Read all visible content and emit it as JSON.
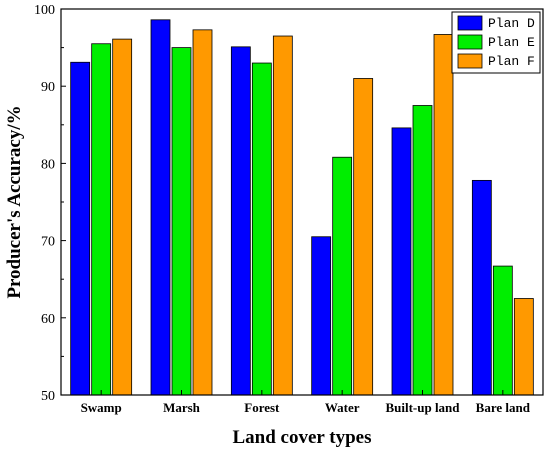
{
  "chart_data": {
    "type": "bar",
    "title": "",
    "xlabel": "Land cover types",
    "ylabel": "Producer's Accuracy/%",
    "ylim": [
      50,
      100
    ],
    "yticks": [
      50,
      60,
      70,
      80,
      90,
      100
    ],
    "categories": [
      "Swamp",
      "Marsh",
      "Forest",
      "Water",
      "Built-up land",
      "Bare land"
    ],
    "series": [
      {
        "name": "Plan D",
        "color": "#0000ff",
        "values": [
          93.1,
          98.6,
          95.1,
          70.5,
          84.6,
          77.8
        ]
      },
      {
        "name": "Plan E",
        "color": "#00ee00",
        "values": [
          95.5,
          95.0,
          93.0,
          80.8,
          87.5,
          66.7
        ]
      },
      {
        "name": "Plan F",
        "color": "#ff9900",
        "values": [
          96.1,
          97.3,
          96.5,
          91.0,
          96.7,
          62.5
        ]
      }
    ],
    "grid": false,
    "legend_position": "top-right"
  }
}
